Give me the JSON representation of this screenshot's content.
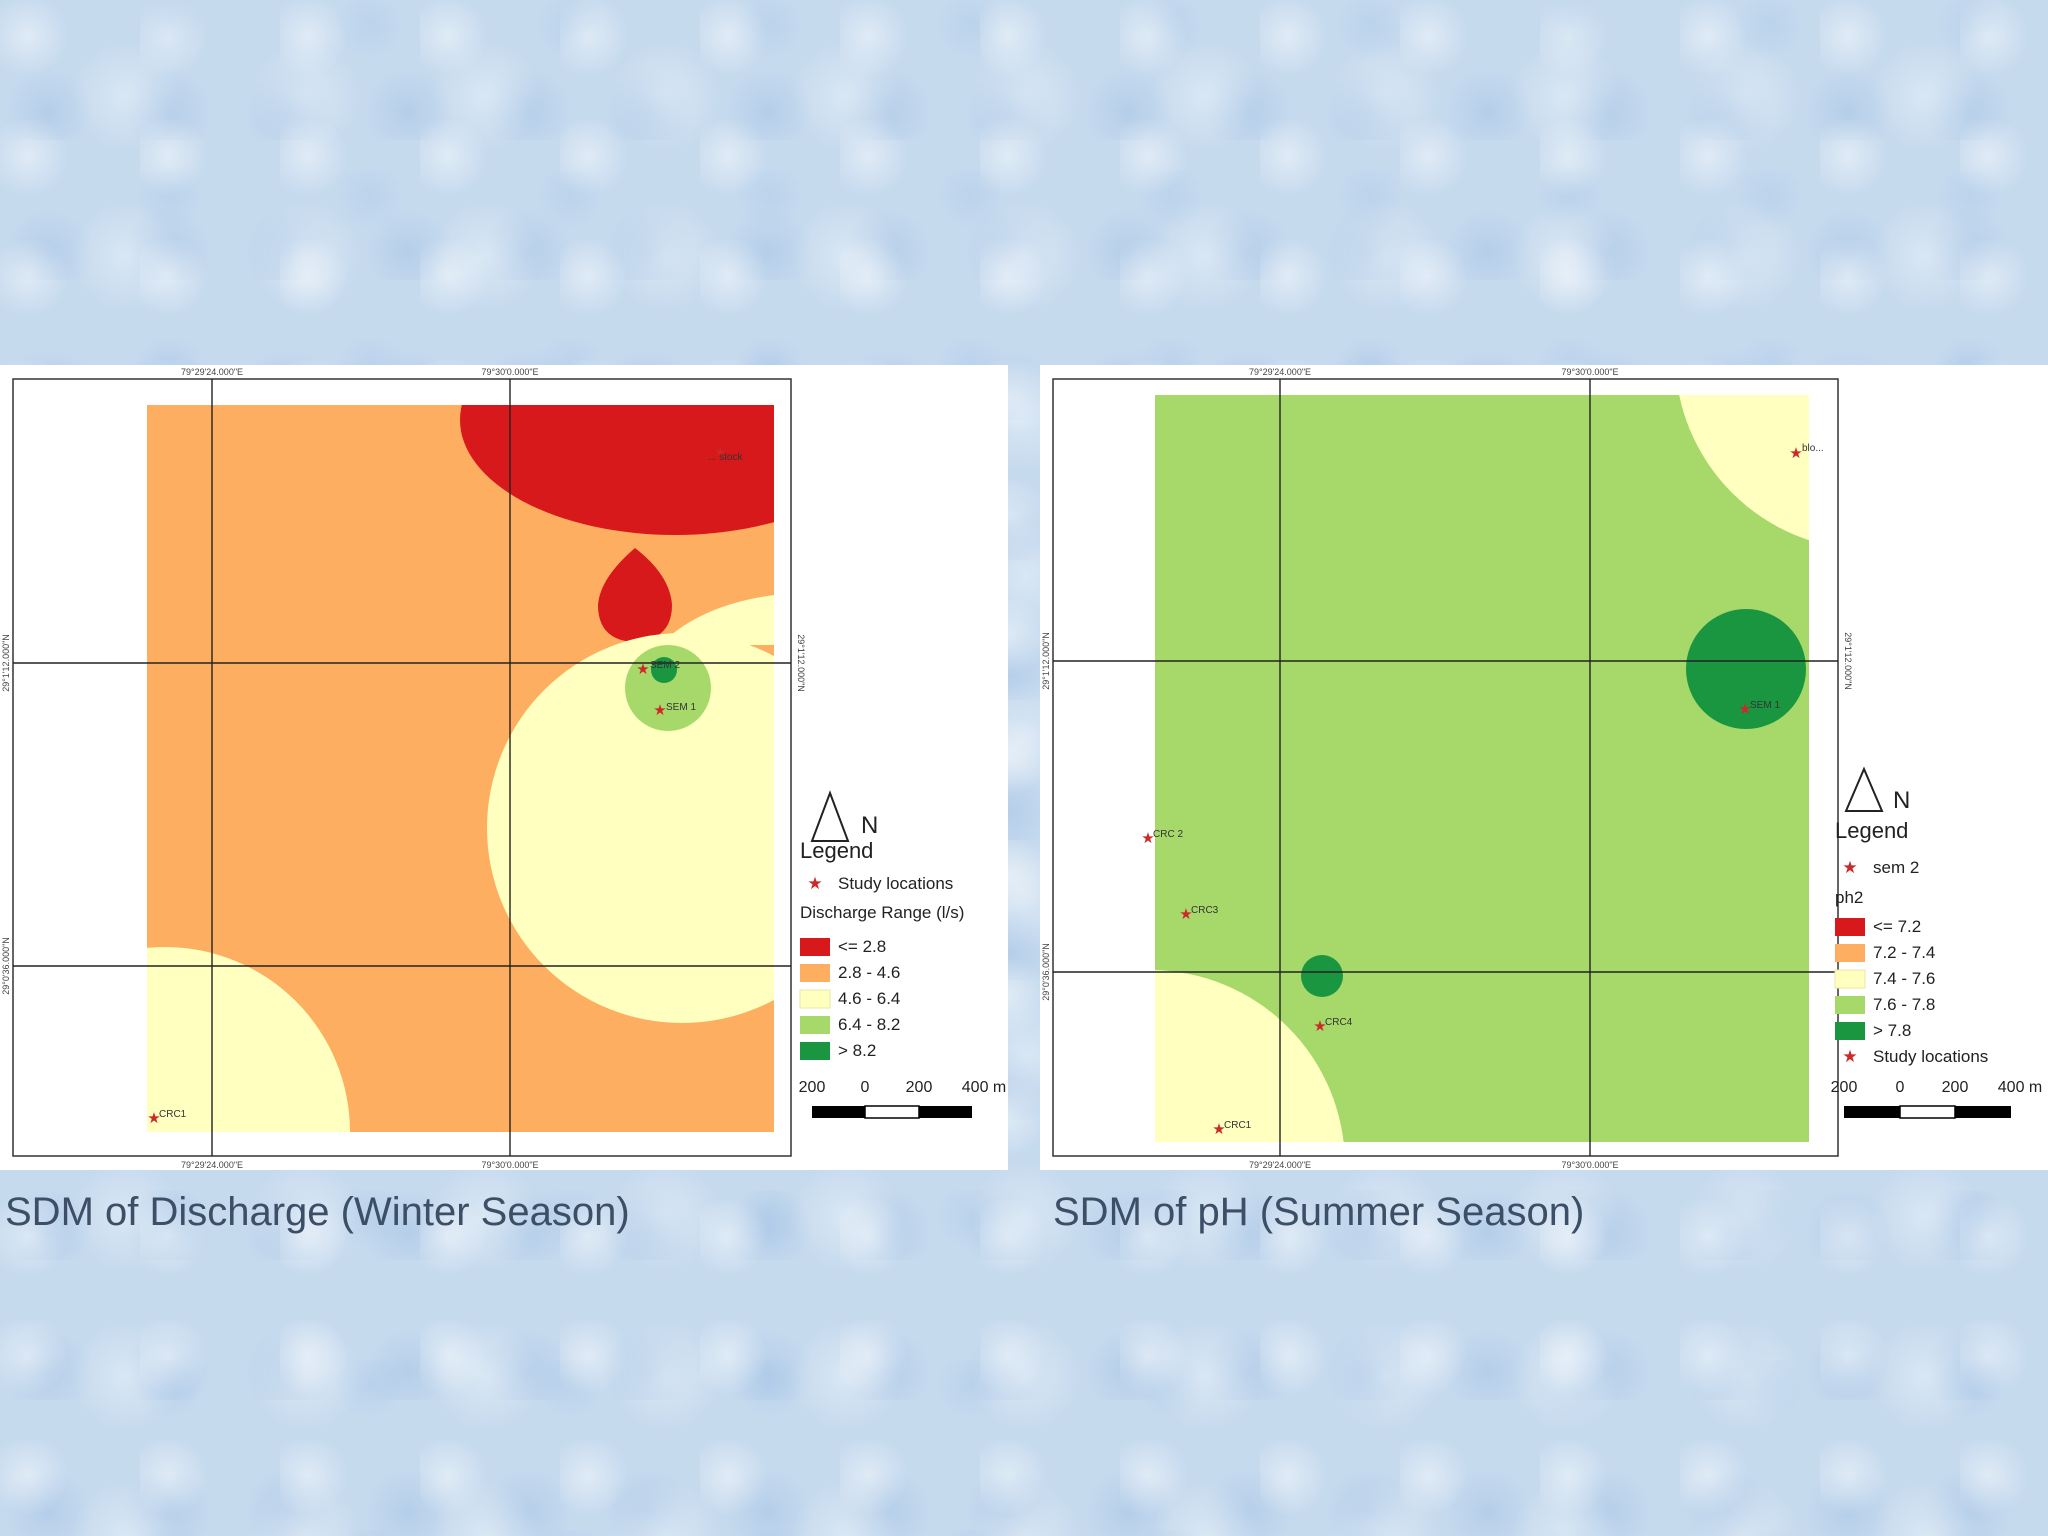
{
  "maps": [
    {
      "coords": {
        "top_left": "79°29'24.000\"E",
        "top_right": "79°30'0.000\"E",
        "bottom_left": "79°29'24.000\"E",
        "bottom_right": "79°30'0.000\"E",
        "left_upper": "29°1'12.000\"N",
        "left_lower": "29°0'36.000\"N",
        "right_upper": "29°1'12.000\"N"
      },
      "sites": [
        "... stock",
        "SEM 2",
        "SEM 1",
        "CRC1"
      ],
      "north_label": "N",
      "legend_title": "Legend",
      "legend_items": [
        {
          "type": "symbol",
          "label": "Study locations",
          "color": "#cc2a2a"
        },
        {
          "type": "heading",
          "label": "Discharge Range (l/s)"
        },
        {
          "type": "swatch",
          "label": "<= 2.8",
          "color": "#d7191c"
        },
        {
          "type": "swatch",
          "label": "2.8 - 4.6",
          "color": "#fdae61"
        },
        {
          "type": "swatch",
          "label": "4.6 - 6.4",
          "color": "#ffffbf"
        },
        {
          "type": "swatch",
          "label": "6.4 - 8.2",
          "color": "#a6d96a"
        },
        {
          "type": "swatch",
          "label": "> 8.2",
          "color": "#1a9641"
        }
      ],
      "scale_labels": [
        "200",
        "0",
        "200",
        "400 m"
      ],
      "caption": "SDM of Discharge (Winter Season)"
    },
    {
      "coords": {
        "top_left": "79°29'24.000\"E",
        "top_right": "79°30'0.000\"E",
        "bottom_left": "79°29'24.000\"E",
        "bottom_right": "79°30'0.000\"E",
        "left_upper": "29°1'12.000\"N",
        "left_lower": "29°0'36.000\"N",
        "right_upper": "29°1'12.000\"N"
      },
      "sites": [
        "blo...",
        "SEM 1",
        "CRC 2",
        "CRC3",
        "CRC4",
        "CRC1"
      ],
      "north_label": "N",
      "legend_title": "Legend",
      "legend_items": [
        {
          "type": "symbol",
          "label": "sem 2",
          "color": "#cc2a2a"
        },
        {
          "type": "heading",
          "label": "ph2"
        },
        {
          "type": "swatch",
          "label": "<= 7.2",
          "color": "#d7191c"
        },
        {
          "type": "swatch",
          "label": "7.2 - 7.4",
          "color": "#fdae61"
        },
        {
          "type": "swatch",
          "label": "7.4 - 7.6",
          "color": "#ffffbf"
        },
        {
          "type": "swatch",
          "label": "7.6 - 7.8",
          "color": "#a6d96a"
        },
        {
          "type": "swatch",
          "label": "> 7.8",
          "color": "#1a9641"
        },
        {
          "type": "symbol",
          "label": "Study locations",
          "color": "#cc2a2a"
        }
      ],
      "scale_labels": [
        "200",
        "0",
        "200",
        "400 m"
      ],
      "caption": "SDM of pH (Summer Season)"
    }
  ]
}
